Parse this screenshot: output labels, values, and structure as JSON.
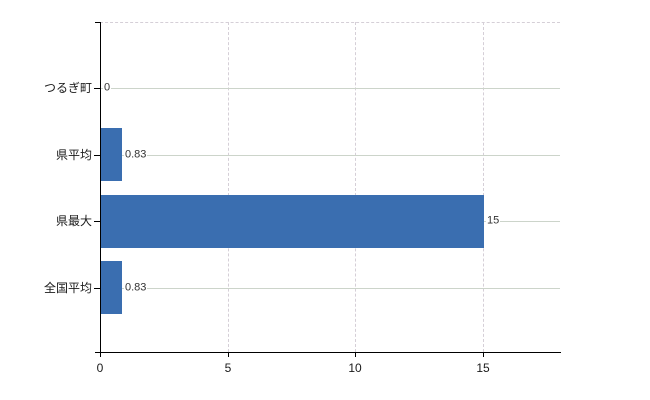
{
  "chart_data": {
    "type": "bar",
    "orientation": "horizontal",
    "title": "",
    "xlabel": "",
    "ylabel": "",
    "categories": [
      "つるぎ町",
      "県平均",
      "県最大",
      "全国平均"
    ],
    "values": [
      0,
      0.83,
      15,
      0.83
    ],
    "value_labels": [
      "0",
      "0.83",
      "15",
      "0.83"
    ],
    "x_ticks": [
      "0",
      "5",
      "10",
      "15"
    ],
    "x_tick_values": [
      0,
      5,
      10,
      15
    ],
    "xlim": [
      0,
      18
    ],
    "grid": true,
    "legend": false,
    "bar_color": "#3a6eb0",
    "hgrid_color": "#ccd4ca",
    "vgrid_color": "#d5cfd7",
    "axis_color": "#000000"
  }
}
